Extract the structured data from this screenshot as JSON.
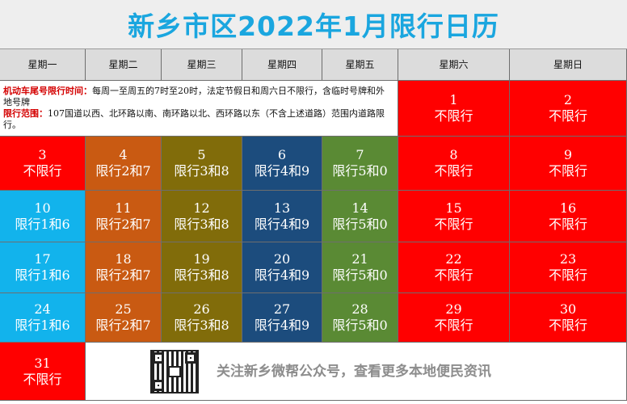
{
  "title": "新乡市区2022年1月限行日历",
  "weekdays": [
    "星期一",
    "星期二",
    "星期三",
    "星期四",
    "星期五",
    "星期六",
    "星期日"
  ],
  "note": {
    "time_label": "机动车尾号限行时间：",
    "time_text": "每周一至周五的7时至20时，法定节假日和周六日不限行，含临时号牌和外地号牌",
    "range_label": "限行范围：",
    "range_text": "107国道以西、北环路以南、南环路以北、西环路以东（不含上述道路）范围内道路限行。"
  },
  "days": [
    {
      "date": "1",
      "rule": "不限行",
      "color": "#ff0000"
    },
    {
      "date": "2",
      "rule": "不限行",
      "color": "#ff0000"
    },
    {
      "date": "3",
      "rule": "不限行",
      "color": "#ff0000"
    },
    {
      "date": "4",
      "rule": "限行2和7",
      "color": "#c95a12"
    },
    {
      "date": "5",
      "rule": "限行3和8",
      "color": "#816c0a"
    },
    {
      "date": "6",
      "rule": "限行4和9",
      "color": "#1c4c7d"
    },
    {
      "date": "7",
      "rule": "限行5和0",
      "color": "#5a8a34"
    },
    {
      "date": "8",
      "rule": "不限行",
      "color": "#ff0000"
    },
    {
      "date": "9",
      "rule": "不限行",
      "color": "#ff0000"
    },
    {
      "date": "10",
      "rule": "限行1和6",
      "color": "#12b3ec"
    },
    {
      "date": "11",
      "rule": "限行2和7",
      "color": "#c95a12"
    },
    {
      "date": "12",
      "rule": "限行3和8",
      "color": "#816c0a"
    },
    {
      "date": "13",
      "rule": "限行4和9",
      "color": "#1c4c7d"
    },
    {
      "date": "14",
      "rule": "限行5和0",
      "color": "#5a8a34"
    },
    {
      "date": "15",
      "rule": "不限行",
      "color": "#ff0000"
    },
    {
      "date": "16",
      "rule": "不限行",
      "color": "#ff0000"
    },
    {
      "date": "17",
      "rule": "限行1和6",
      "color": "#12b3ec"
    },
    {
      "date": "18",
      "rule": "限行2和7",
      "color": "#c95a12"
    },
    {
      "date": "19",
      "rule": "限行3和8",
      "color": "#816c0a"
    },
    {
      "date": "20",
      "rule": "限行4和9",
      "color": "#1c4c7d"
    },
    {
      "date": "21",
      "rule": "限行5和0",
      "color": "#5a8a34"
    },
    {
      "date": "22",
      "rule": "不限行",
      "color": "#ff0000"
    },
    {
      "date": "23",
      "rule": "不限行",
      "color": "#ff0000"
    },
    {
      "date": "24",
      "rule": "限行1和6",
      "color": "#12b3ec"
    },
    {
      "date": "25",
      "rule": "限行2和7",
      "color": "#c95a12"
    },
    {
      "date": "26",
      "rule": "限行3和8",
      "color": "#816c0a"
    },
    {
      "date": "27",
      "rule": "限行4和9",
      "color": "#1c4c7d"
    },
    {
      "date": "28",
      "rule": "限行5和0",
      "color": "#5a8a34"
    },
    {
      "date": "29",
      "rule": "不限行",
      "color": "#ff0000"
    },
    {
      "date": "30",
      "rule": "不限行",
      "color": "#ff0000"
    },
    {
      "date": "31",
      "rule": "不限行",
      "color": "#ff0000"
    }
  ],
  "footer": {
    "qr_icon": "qr-code-icon",
    "text": "关注新乡微帮公众号，查看更多本地便民资讯"
  }
}
